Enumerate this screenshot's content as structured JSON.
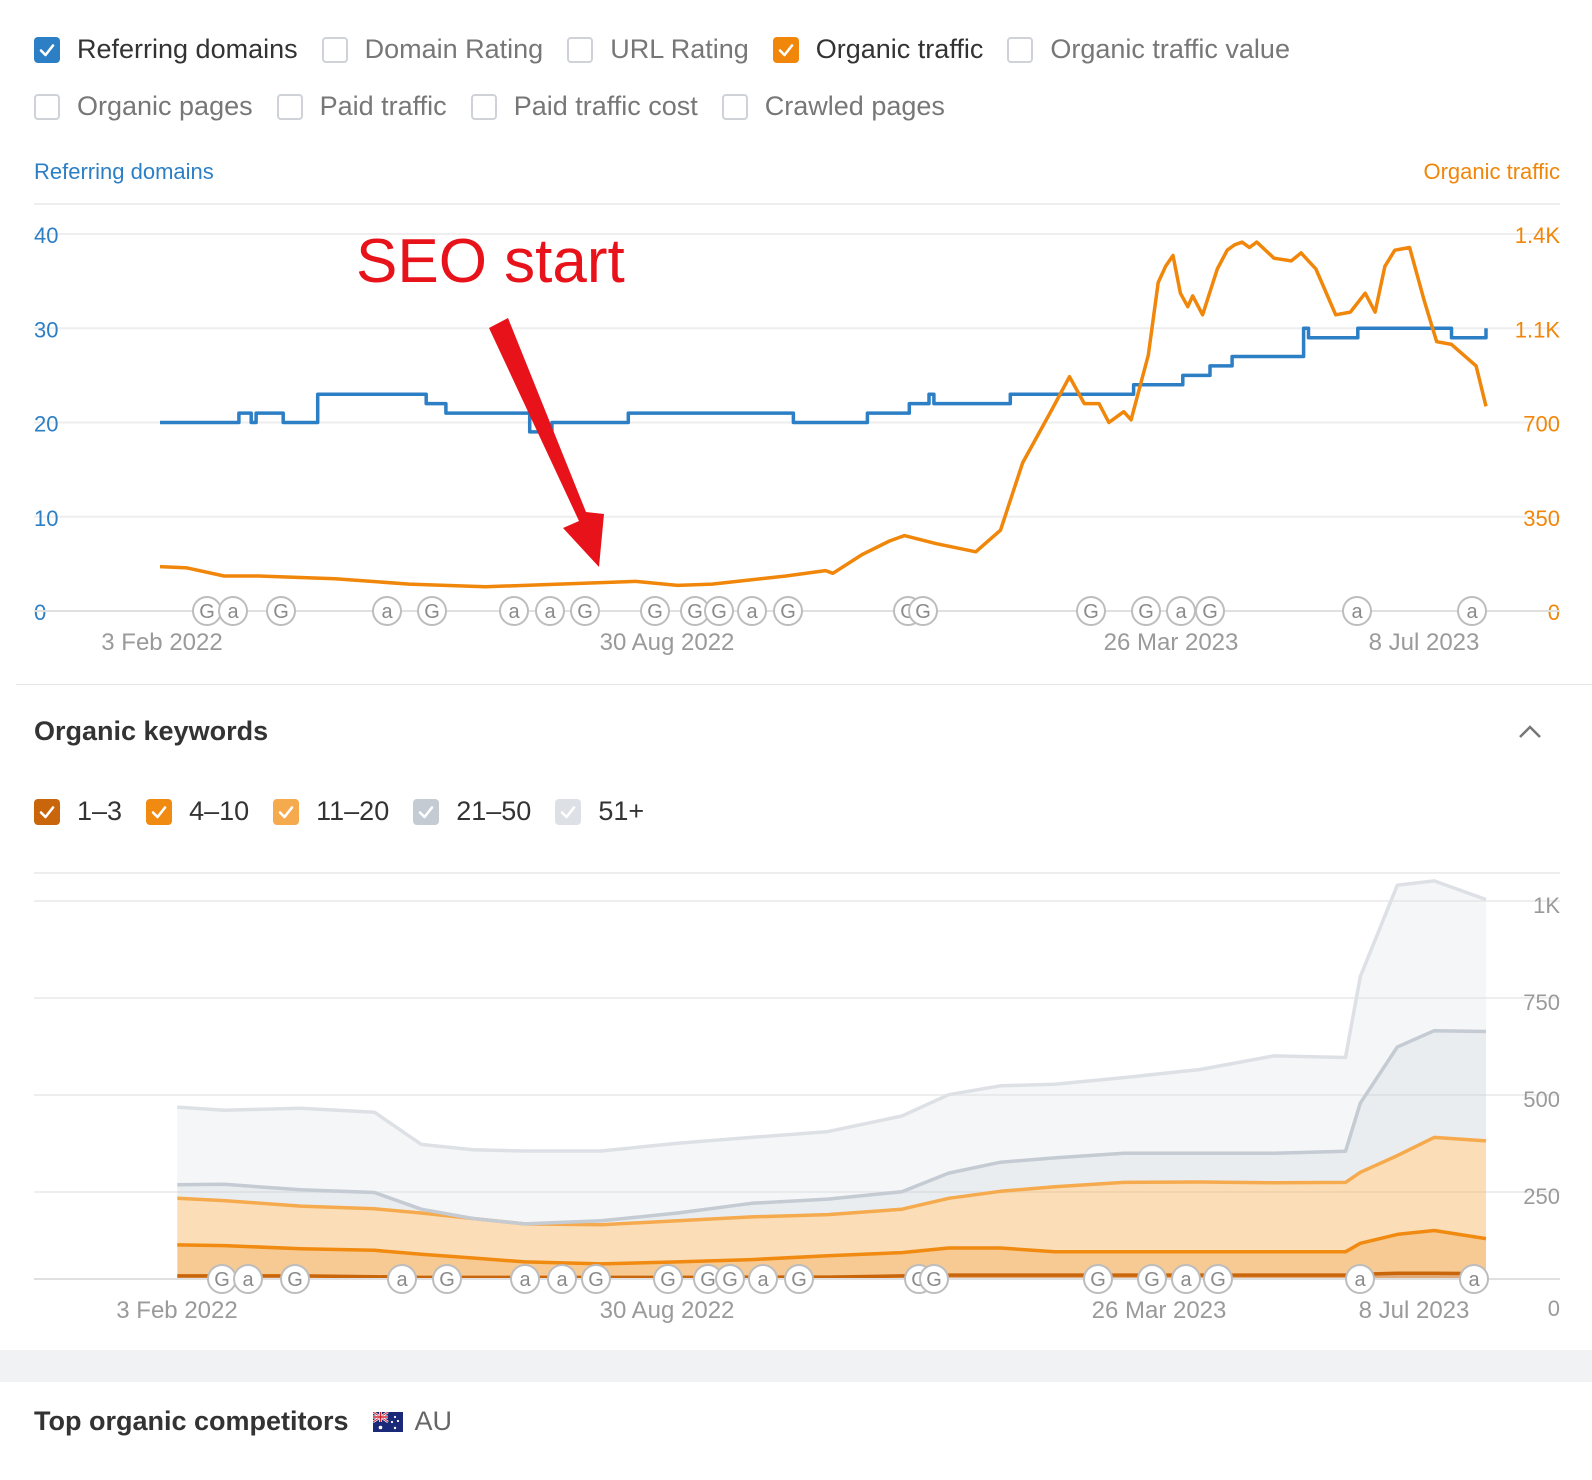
{
  "metrics": {
    "row1": [
      {
        "label": "Referring domains",
        "checked": true,
        "color": "#2d7fc5"
      },
      {
        "label": "Domain Rating",
        "checked": false
      },
      {
        "label": "URL Rating",
        "checked": false
      },
      {
        "label": "Organic traffic",
        "checked": true,
        "color": "#f0860a"
      },
      {
        "label": "Organic traffic value",
        "checked": false
      }
    ],
    "row2": [
      {
        "label": "Organic pages",
        "checked": false
      },
      {
        "label": "Paid traffic",
        "checked": false
      },
      {
        "label": "Paid traffic cost",
        "checked": false
      },
      {
        "label": "Crawled pages",
        "checked": false
      }
    ]
  },
  "annotation": {
    "text": "SEO start",
    "color": "#e8121a"
  },
  "keywords_section": {
    "title": "Organic keywords",
    "filters": [
      {
        "label": "1–3",
        "color": "#c9650a"
      },
      {
        "label": "4–10",
        "color": "#f08a10"
      },
      {
        "label": "11–20",
        "color": "#f6aa4e"
      },
      {
        "label": "21–50",
        "color": "#c4cbd3"
      },
      {
        "label": "51+",
        "color": "#dde1e6"
      }
    ]
  },
  "competitors": {
    "title": "Top organic competitors",
    "country": "AU",
    "flag": "australia-flag-icon"
  },
  "chart_data": [
    {
      "type": "line",
      "ylabel_left": "Referring domains",
      "ylabel_right": "Organic traffic",
      "y_left_ticks": [
        "0",
        "10",
        "20",
        "30",
        "40"
      ],
      "y_right_ticks": [
        "0",
        "350",
        "700",
        "1.1K",
        "1.4K"
      ],
      "ylim_left": [
        0,
        40
      ],
      "ylim_right": [
        0,
        1400
      ],
      "x_ticks": [
        "3 Feb 2022",
        "30 Aug 2022",
        "26 Mar 2023",
        "8 Jul 2023"
      ],
      "x_range": [
        "2022-02-03",
        "2023-07-26"
      ],
      "grid": true,
      "annotation_markers": [
        "G",
        "a",
        "G",
        "a",
        "G",
        "a",
        "a",
        "G",
        "G",
        "G",
        "G",
        "a",
        "G",
        "G",
        "G",
        "G",
        "G",
        "a",
        "G",
        "a",
        "a"
      ],
      "series": [
        {
          "name": "Referring domains",
          "axis": "left",
          "color": "#2d7fc5",
          "x": [
            "2022-02-03",
            "2022-03-05",
            "2022-03-07",
            "2022-03-12",
            "2022-03-14",
            "2022-03-25",
            "2022-04-08",
            "2022-05-09",
            "2022-05-22",
            "2022-05-30",
            "2022-06-14",
            "2022-07-03",
            "2022-07-12",
            "2022-07-22",
            "2022-08-12",
            "2022-08-30",
            "2022-09-19",
            "2022-10-18",
            "2022-10-31",
            "2022-11-17",
            "2022-12-04",
            "2022-12-12",
            "2022-12-14",
            "2023-01-10",
            "2023-01-14",
            "2023-02-15",
            "2023-03-05",
            "2023-03-25",
            "2023-04-05",
            "2023-04-14",
            "2023-05-04",
            "2023-05-13",
            "2023-05-15",
            "2023-05-25",
            "2023-06-04",
            "2023-06-13",
            "2023-07-12",
            "2023-07-14",
            "2023-07-26"
          ],
          "values": [
            20,
            20,
            21,
            20,
            21,
            20,
            23,
            23,
            22,
            21,
            21,
            19,
            20,
            20,
            21,
            21,
            21,
            20,
            20,
            21,
            22,
            23,
            22,
            22,
            23,
            23,
            24,
            25,
            26,
            27,
            27,
            30,
            29,
            29,
            30,
            30,
            29,
            29,
            30
          ]
        },
        {
          "name": "Organic traffic",
          "axis": "right",
          "color": "#f0860a",
          "x": [
            "2022-02-03",
            "2022-02-14",
            "2022-03-01",
            "2022-03-15",
            "2022-04-15",
            "2022-05-15",
            "2022-06-15",
            "2022-07-15",
            "2022-08-15",
            "2022-09-01",
            "2022-09-15",
            "2022-10-15",
            "2022-10-31",
            "2022-11-03",
            "2022-11-15",
            "2022-11-26",
            "2022-12-02",
            "2022-12-15",
            "2022-12-31",
            "2023-01-10",
            "2023-01-19",
            "2023-01-31",
            "2023-02-07",
            "2023-02-13",
            "2023-02-19",
            "2023-02-23",
            "2023-03-01",
            "2023-03-04",
            "2023-03-11",
            "2023-03-15",
            "2023-03-18",
            "2023-03-21",
            "2023-03-24",
            "2023-03-27",
            "2023-03-29",
            "2023-04-02",
            "2023-04-08",
            "2023-04-12",
            "2023-04-15",
            "2023-04-18",
            "2023-04-21",
            "2023-04-24",
            "2023-05-01",
            "2023-05-08",
            "2023-05-12",
            "2023-05-18",
            "2023-05-26",
            "2023-06-01",
            "2023-06-07",
            "2023-06-11",
            "2023-06-15",
            "2023-06-19",
            "2023-06-25",
            "2023-07-01",
            "2023-07-06",
            "2023-07-12",
            "2023-07-17",
            "2023-07-22",
            "2023-07-26"
          ],
          "values": [
            165,
            160,
            130,
            130,
            120,
            100,
            90,
            100,
            110,
            95,
            100,
            130,
            150,
            140,
            210,
            260,
            280,
            250,
            220,
            300,
            550,
            750,
            870,
            770,
            770,
            700,
            740,
            710,
            950,
            1220,
            1280,
            1320,
            1180,
            1130,
            1170,
            1100,
            1270,
            1340,
            1360,
            1370,
            1350,
            1370,
            1310,
            1300,
            1330,
            1270,
            1100,
            1110,
            1180,
            1110,
            1280,
            1340,
            1350,
            1150,
            1000,
            990,
            950,
            910,
            760
          ]
        }
      ]
    },
    {
      "type": "area",
      "title": "Organic keywords",
      "y_ticks": [
        "0",
        "250",
        "500",
        "750",
        "1K"
      ],
      "ylim": [
        0,
        1000
      ],
      "x_ticks": [
        "3 Feb 2022",
        "30 Aug 2022",
        "26 Mar 2023",
        "8 Jul 2023"
      ],
      "x_range": [
        "2022-02-03",
        "2023-07-26"
      ],
      "stacked": true,
      "annotation_markers": [
        "G",
        "a",
        "G",
        "a",
        "G",
        "a",
        "a",
        "G",
        "G",
        "G",
        "G",
        "a",
        "G",
        "G",
        "G",
        "G",
        "G",
        "a",
        "G",
        "a",
        "a"
      ],
      "x": [
        "2022-02-10",
        "2022-03-01",
        "2022-04-01",
        "2022-05-01",
        "2022-05-20",
        "2022-06-10",
        "2022-07-01",
        "2022-08-01",
        "2022-09-01",
        "2022-10-01",
        "2022-11-01",
        "2022-12-01",
        "2022-12-20",
        "2023-01-10",
        "2023-02-01",
        "2023-03-01",
        "2023-04-01",
        "2023-05-01",
        "2023-05-30",
        "2023-06-05",
        "2023-06-20",
        "2023-07-05",
        "2023-07-26"
      ],
      "series": [
        {
          "name": "1–3",
          "color": "#c9650a",
          "values": [
            8,
            8,
            8,
            6,
            4,
            4,
            4,
            4,
            4,
            5,
            5,
            8,
            10,
            10,
            10,
            10,
            10,
            10,
            10,
            12,
            15,
            15,
            14
          ]
        },
        {
          "name": "4–10",
          "color": "#f08a10",
          "values": [
            80,
            78,
            70,
            68,
            60,
            50,
            40,
            35,
            40,
            45,
            55,
            60,
            70,
            70,
            60,
            60,
            60,
            60,
            60,
            80,
            100,
            110,
            90
          ]
        },
        {
          "name": "11–20",
          "color": "#f6aa4e",
          "values": [
            120,
            116,
            110,
            107,
            106,
            102,
            98,
            101,
            106,
            110,
            106,
            112,
            128,
            146,
            168,
            179,
            180,
            178,
            179,
            183,
            203,
            240,
            252
          ]
        },
        {
          "name": "21–50",
          "color": "#c4cbd3",
          "values": [
            35,
            42,
            42,
            42,
            10,
            0,
            0,
            10,
            20,
            35,
            40,
            45,
            65,
            75,
            74,
            75,
            74,
            76,
            80,
            178,
            280,
            275,
            282
          ]
        },
        {
          "name": "51+",
          "color": "#dde1e6",
          "values": [
            200,
            191,
            210,
            207,
            167,
            177,
            188,
            180,
            180,
            170,
            174,
            195,
            202,
            197,
            190,
            195,
            216,
            251,
            242,
            326,
            417,
            386,
            340
          ]
        }
      ]
    }
  ]
}
